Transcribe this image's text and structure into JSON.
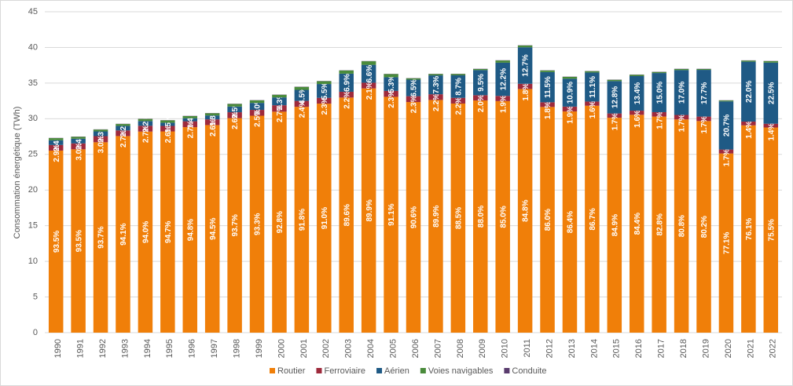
{
  "chart_data": {
    "type": "bar",
    "stacked": true,
    "y_label": "Consommation énergétique (TWh)",
    "categories": [
      "1990",
      "1991",
      "1992",
      "1993",
      "1994",
      "1995",
      "1996",
      "1997",
      "1998",
      "1999",
      "2000",
      "2001",
      "2002",
      "2003",
      "2004",
      "2005",
      "2006",
      "2007",
      "2008",
      "2009",
      "2010",
      "2011",
      "2012",
      "2013",
      "2014",
      "2015",
      "2016",
      "2017",
      "2018",
      "2019",
      "2020",
      "2021",
      "2022"
    ],
    "ylim": [
      0,
      45
    ],
    "yticks": [
      0,
      5,
      10,
      15,
      20,
      25,
      30,
      35,
      40,
      45
    ],
    "grid": true,
    "legend": "bottom",
    "series": [
      {
        "name": "Routier",
        "color": "#f07f09",
        "values": [
          25.53,
          25.71,
          26.7,
          27.57,
          28.2,
          28.22,
          28.82,
          29.11,
          30.08,
          30.42,
          30.99,
          31.67,
          32.12,
          32.97,
          34.25,
          33.07,
          32.34,
          32.63,
          32.13,
          32.56,
          32.47,
          34.17,
          31.65,
          31.02,
          31.82,
          30.14,
          30.55,
          30.3,
          29.9,
          29.67,
          25.13,
          29.07,
          28.77
        ],
        "share_labels": [
          "93.5%",
          "93.5%",
          "93.7%",
          "94.1%",
          "94.0%",
          "94.7%",
          "94.8%",
          "94.5%",
          "93.7%",
          "93.3%",
          "92.8%",
          "91.8%",
          "91.0%",
          "89.6%",
          "89.9%",
          "91.1%",
          "90.6%",
          "89.9%",
          "88.5%",
          "88.0%",
          "85.0%",
          "84.8%",
          "86.0%",
          "86.4%",
          "86.7%",
          "84.9%",
          "84.4%",
          "82.8%",
          "80.8%",
          "80.2%",
          "77.1%",
          "76.1%",
          "75.5%"
        ]
      },
      {
        "name": "Ferroviaire",
        "color": "#9e2a3c",
        "values": [
          0.79,
          0.83,
          0.86,
          0.79,
          0.81,
          0.77,
          0.82,
          0.8,
          0.83,
          0.82,
          0.9,
          0.83,
          0.81,
          0.81,
          0.8,
          0.83,
          0.82,
          0.8,
          0.8,
          0.74,
          0.73,
          0.73,
          0.66,
          0.68,
          0.59,
          0.6,
          0.58,
          0.62,
          0.63,
          0.63,
          0.55,
          0.53,
          0.53
        ],
        "share_labels": [
          "2.9%",
          "3.0%",
          "3.0%",
          "2.7%",
          "2.7%",
          "2.6%",
          "2.7%",
          "2.6%",
          "2.6%",
          "2.5%",
          "2.7%",
          "2.4%",
          "2.3%",
          "2.2%",
          "2.1%",
          "2.3%",
          "2.3%",
          "2.2%",
          "2.2%",
          "2.0%",
          "1.9%",
          "1.8%",
          "1.8%",
          "1.9%",
          "1.6%",
          "1.7%",
          "1.6%",
          "1.7%",
          "1.7%",
          "1.7%",
          "1.7%",
          "1.4%",
          "1.4%"
        ]
      },
      {
        "name": "Aérien",
        "color": "#1f5a85",
        "values": [
          0.66,
          0.66,
          0.66,
          0.64,
          0.66,
          0.45,
          0.43,
          0.55,
          0.8,
          0.98,
          1.1,
          1.55,
          1.94,
          2.54,
          2.51,
          1.92,
          2.32,
          2.65,
          3.16,
          3.52,
          4.66,
          5.12,
          4.23,
          3.91,
          4.07,
          4.54,
          4.85,
          5.49,
          6.29,
          6.55,
          6.75,
          8.4,
          8.57
        ],
        "share_labels": [
          "2.4%",
          "2.4%",
          "2.3%",
          "2.2%",
          "2.2%",
          "1.5%",
          "1.4%",
          "1.8%",
          "2.5%",
          "3.0%",
          "3.3%",
          "4.5%",
          "5.5%",
          "6.9%",
          "6.6%",
          "5.3%",
          "6.5%",
          "7.3%",
          "8.7%",
          "9.5%",
          "12.2%",
          "12.7%",
          "11.5%",
          "10.9%",
          "11.1%",
          "12.8%",
          "13.4%",
          "15.0%",
          "17.0%",
          "17.7%",
          "20.7%",
          "22.0%",
          "22.5%"
        ]
      },
      {
        "name": "Voies navigables",
        "color": "#4a8b3b",
        "values": [
          0.3,
          0.27,
          0.26,
          0.26,
          0.3,
          0.33,
          0.3,
          0.31,
          0.36,
          0.36,
          0.37,
          0.42,
          0.39,
          0.45,
          0.5,
          0.44,
          0.19,
          0.19,
          0.19,
          0.15,
          0.31,
          0.25,
          0.23,
          0.26,
          0.19,
          0.18,
          0.19,
          0.15,
          0.15,
          0.12,
          0.13,
          0.16,
          0.2
        ]
      },
      {
        "name": "Conduite",
        "color": "#5a3c6e",
        "values": [
          0.03,
          0.03,
          0.03,
          0.03,
          0.03,
          0.03,
          0.03,
          0.03,
          0.03,
          0.03,
          0.03,
          0.03,
          0.03,
          0.03,
          0.03,
          0.03,
          0.03,
          0.03,
          0.03,
          0.03,
          0.03,
          0.03,
          0.03,
          0.03,
          0.03,
          0.03,
          0.03,
          0.03,
          0.03,
          0.03,
          0.03,
          0.03,
          0.03
        ]
      }
    ]
  }
}
